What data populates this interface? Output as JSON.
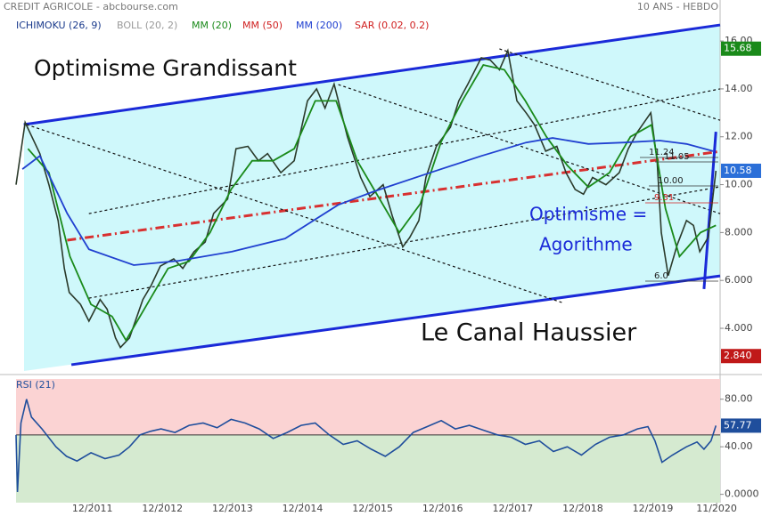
{
  "chart_data": [
    {
      "type": "line",
      "title": "CREDIT AGRICOLE - abcbourse.com",
      "subtitle": "10 ANS - HEBDO",
      "legend": [
        {
          "label": "ICHIMOKU (26, 9)",
          "color": "#1a3a8c"
        },
        {
          "label": "BOLL (20, 2)",
          "color": "#9a9a9a"
        },
        {
          "label": "MM (20)",
          "color": "#1a8a1a"
        },
        {
          "label": "MM (50)",
          "color": "#d02020"
        },
        {
          "label": "MM (200)",
          "color": "#2040d0"
        },
        {
          "label": "SAR (0.02, 0.2)",
          "color": "#d02020"
        }
      ],
      "xlim": [
        2010.83,
        2020.88
      ],
      "ylim": [
        2.18,
        16.97
      ],
      "yticks": [
        {
          "value": 4,
          "label": "4.000"
        },
        {
          "value": 6,
          "label": "6.000"
        },
        {
          "value": 8,
          "label": "8.000"
        },
        {
          "value": 10,
          "label": "10.00"
        },
        {
          "value": 12,
          "label": "12.00"
        },
        {
          "value": 14,
          "label": "14.00"
        },
        {
          "value": 16,
          "label": "16.00"
        }
      ],
      "series": [
        {
          "color": "#2b3a2b",
          "x": [
            2010.83,
            2010.96,
            2011.17,
            2011.3,
            2011.43,
            2011.52,
            2011.59,
            2011.75,
            2011.87,
            2012.03,
            2012.13,
            2012.25,
            2012.32,
            2012.45,
            2012.64,
            2012.76,
            2012.89,
            2013.08,
            2013.21,
            2013.37,
            2013.53,
            2013.65,
            2013.85,
            2013.97,
            2014.14,
            2014.29,
            2014.42,
            2014.61,
            2014.8,
            2014.99,
            2015.12,
            2015.24,
            2015.37,
            2015.56,
            2015.75,
            2015.88,
            2016.07,
            2016.2,
            2016.35,
            2016.45,
            2016.58,
            2016.68,
            2016.83,
            2017.03,
            2017.15,
            2017.28,
            2017.47,
            2017.6,
            2017.73,
            2017.85,
            2017.98,
            2018.11,
            2018.23,
            2018.39,
            2018.55,
            2018.68,
            2018.81,
            2018.93,
            2019.06,
            2019.25,
            2019.44,
            2019.57,
            2019.7,
            2019.89,
            2019.98,
            2020.04,
            2020.14,
            2020.27,
            2020.4,
            2020.5,
            2020.59,
            2020.71,
            2020.82
          ],
          "values": [
            10.0,
            12.6,
            11.3,
            10.0,
            8.5,
            6.5,
            5.5,
            5.0,
            4.3,
            5.2,
            4.8,
            3.6,
            3.2,
            3.6,
            5.2,
            5.8,
            6.6,
            6.9,
            6.5,
            7.2,
            7.6,
            8.8,
            9.4,
            11.5,
            11.6,
            11.0,
            11.3,
            10.5,
            11.0,
            13.5,
            14.0,
            13.2,
            14.2,
            12.0,
            10.3,
            9.5,
            10.0,
            8.7,
            7.4,
            7.8,
            8.5,
            10.3,
            11.6,
            12.4,
            13.5,
            14.2,
            15.3,
            15.2,
            14.8,
            15.6,
            13.5,
            13.0,
            12.5,
            11.4,
            11.6,
            10.5,
            9.8,
            9.6,
            10.3,
            10.0,
            10.5,
            11.5,
            12.2,
            13.0,
            11.0,
            8.0,
            6.2,
            7.5,
            8.5,
            8.3,
            7.2,
            7.8,
            10.58
          ]
        },
        {
          "color": "#1a8a1a",
          "x": [
            2011.0,
            2011.3,
            2011.6,
            2011.9,
            2012.2,
            2012.4,
            2012.7,
            2013.0,
            2013.3,
            2013.6,
            2013.9,
            2014.2,
            2014.5,
            2014.8,
            2015.1,
            2015.4,
            2015.7,
            2016.0,
            2016.3,
            2016.6,
            2016.9,
            2017.2,
            2017.5,
            2017.8,
            2018.1,
            2018.4,
            2018.7,
            2019.0,
            2019.3,
            2019.6,
            2019.9,
            2020.1,
            2020.3,
            2020.6,
            2020.82
          ],
          "values": [
            11.5,
            10.5,
            7.0,
            5.0,
            4.5,
            3.5,
            5.0,
            6.5,
            6.8,
            8.0,
            9.8,
            11.0,
            11.0,
            11.5,
            13.5,
            13.5,
            11.0,
            9.5,
            8.0,
            9.2,
            11.8,
            13.5,
            15.0,
            14.8,
            13.5,
            12.0,
            10.8,
            9.9,
            10.5,
            12.0,
            12.5,
            9.0,
            7.0,
            8.0,
            8.3
          ]
        },
        {
          "color": "#2040d0",
          "x": [
            2010.92,
            2011.17,
            2011.56,
            2011.87,
            2012.51,
            2013.15,
            2013.91,
            2014.67,
            2015.43,
            2015.94,
            2016.7,
            2017.47,
            2018.11,
            2018.49,
            2019.0,
            2019.51,
            2020.02,
            2020.4,
            2020.78
          ],
          "values": [
            10.65,
            11.2,
            8.8,
            7.3,
            6.64,
            6.82,
            7.2,
            7.75,
            9.16,
            9.72,
            10.46,
            11.2,
            11.76,
            11.95,
            11.7,
            11.76,
            11.84,
            11.7,
            11.4
          ]
        }
      ],
      "lines": [
        {
          "x": [
            2010.94,
            2020.88
          ],
          "y": [
            12.51,
            16.67
          ],
          "color": "#1a2ad8",
          "style": "solid"
        },
        {
          "x": [
            2011.62,
            2020.88
          ],
          "y": [
            2.48,
            6.19
          ],
          "color": "#1a2ad8",
          "style": "solid"
        },
        {
          "x": [
            2011.56,
            2020.88
          ],
          "y": [
            7.68,
            11.39
          ],
          "color": "#d83030",
          "style": "dashdot"
        },
        {
          "x": [
            2010.98,
            2018.62
          ],
          "y": [
            12.51,
            5.08
          ],
          "color": "#111111",
          "style": "dotted"
        },
        {
          "x": [
            2015.43,
            2020.88
          ],
          "y": [
            14.18,
            8.79
          ],
          "color": "#111111",
          "style": "dotted"
        },
        {
          "x": [
            2017.73,
            2020.88
          ],
          "y": [
            15.67,
            12.69
          ],
          "color": "#111111",
          "style": "dotted"
        },
        {
          "x": [
            2011.87,
            2020.88
          ],
          "y": [
            5.26,
            9.91
          ],
          "color": "#111111",
          "style": "dotted"
        },
        {
          "x": [
            2011.87,
            2020.88
          ],
          "y": [
            8.79,
            14.0
          ],
          "color": "#111111",
          "style": "dotted"
        },
        {
          "x": [
            2020.65,
            2020.82
          ],
          "y": [
            5.64,
            12.21
          ],
          "color": "#1a2ad8",
          "style": "solid"
        }
      ],
      "badges": [
        {
          "value": 15.68,
          "label": "15.68",
          "color": "#1a8a1a"
        },
        {
          "value": 10.58,
          "label": "10.58",
          "color": "#2b6fd8"
        },
        {
          "value": 2.84,
          "label": "2.840",
          "color": "#c01818"
        }
      ],
      "annotations": [
        "Optimisme Grandissant",
        "Le Canal Haussier",
        "Optimisme =",
        "Agorithme"
      ],
      "levels": [
        "11.24",
        "11.05",
        "10.00",
        "9.31",
        "6.0"
      ]
    },
    {
      "type": "line",
      "title": "RSI (21)",
      "xlim": [
        2010.83,
        2020.88
      ],
      "ylim": [
        -7,
        97
      ],
      "midline": 50,
      "yticks": [
        {
          "value": 0,
          "label": "0.0000"
        },
        {
          "value": 40,
          "label": "40.00"
        },
        {
          "value": 80,
          "label": "80.00"
        }
      ],
      "xticks": [
        {
          "value": 2011.92,
          "label": "12/2011"
        },
        {
          "value": 2012.92,
          "label": "12/2012"
        },
        {
          "value": 2013.92,
          "label": "12/2013"
        },
        {
          "value": 2014.92,
          "label": "12/2014"
        },
        {
          "value": 2015.92,
          "label": "12/2015"
        },
        {
          "value": 2016.92,
          "label": "12/2016"
        },
        {
          "value": 2017.92,
          "label": "12/2017"
        },
        {
          "value": 2018.92,
          "label": "12/2018"
        },
        {
          "value": 2019.92,
          "label": "12/2019"
        },
        {
          "value": 2020.83,
          "label": "11/2020"
        }
      ],
      "series": [
        {
          "color": "#1f4e9c",
          "x": [
            2010.83,
            2010.85,
            2010.9,
            2010.98,
            2011.05,
            2011.2,
            2011.4,
            2011.55,
            2011.7,
            2011.9,
            2012.1,
            2012.3,
            2012.45,
            2012.6,
            2012.75,
            2012.9,
            2013.1,
            2013.3,
            2013.5,
            2013.7,
            2013.9,
            2014.1,
            2014.3,
            2014.5,
            2014.7,
            2014.9,
            2015.1,
            2015.3,
            2015.5,
            2015.7,
            2015.9,
            2016.1,
            2016.3,
            2016.5,
            2016.7,
            2016.9,
            2017.1,
            2017.3,
            2017.5,
            2017.7,
            2017.9,
            2018.1,
            2018.3,
            2018.5,
            2018.7,
            2018.9,
            2019.1,
            2019.3,
            2019.5,
            2019.7,
            2019.85,
            2019.95,
            2020.05,
            2020.2,
            2020.4,
            2020.55,
            2020.65,
            2020.75,
            2020.82
          ],
          "values": [
            50,
            2,
            60,
            80,
            65,
            55,
            40,
            32,
            28,
            35,
            30,
            33,
            40,
            50,
            53,
            55,
            52,
            58,
            60,
            56,
            63,
            60,
            55,
            47,
            52,
            58,
            60,
            50,
            42,
            45,
            38,
            32,
            40,
            52,
            57,
            62,
            55,
            58,
            54,
            50,
            48,
            42,
            45,
            36,
            40,
            33,
            42,
            48,
            50,
            55,
            57,
            45,
            27,
            33,
            40,
            44,
            38,
            45,
            57.77
          ]
        }
      ],
      "badges": [
        {
          "value": 57.77,
          "label": "57.77",
          "color": "#1f4e9c"
        }
      ]
    }
  ]
}
